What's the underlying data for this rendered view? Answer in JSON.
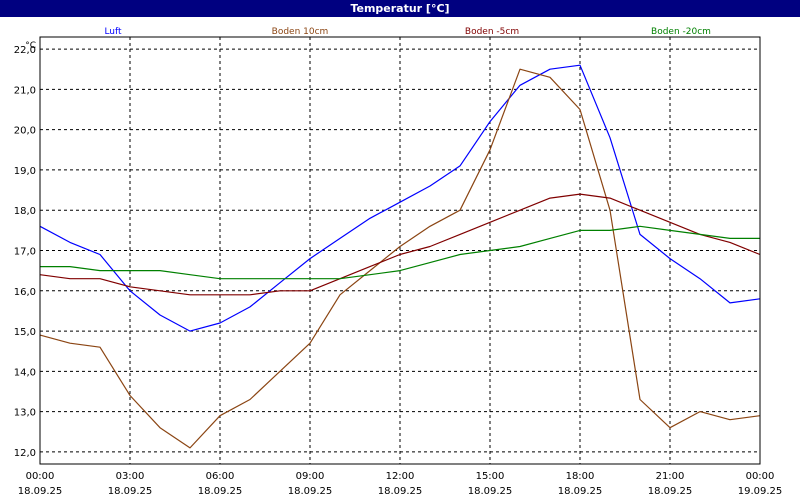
{
  "window": {
    "title": "Temperatur [°C]"
  },
  "colors": {
    "title_bar": "#000080",
    "grid": "#000000",
    "Luft": "#0000ff",
    "Boden 10cm": "#8b4513",
    "Boden -5cm": "#800000",
    "Boden -20cm": "#008000"
  },
  "chart_data": {
    "type": "line",
    "title": "Temperatur [°C]",
    "unit": "°C",
    "ylim": [
      11.7,
      22.3
    ],
    "y_ticks": [
      12.0,
      13.0,
      14.0,
      15.0,
      16.0,
      17.0,
      18.0,
      19.0,
      20.0,
      21.0,
      22.0
    ],
    "y_tick_labels": [
      "12,0",
      "13,0",
      "14,0",
      "15,0",
      "16,0",
      "17,0",
      "18,0",
      "19,0",
      "20,0",
      "21,0",
      "22,0"
    ],
    "x_ticks": [
      {
        "time": "00:00",
        "date": "18.09.25"
      },
      {
        "time": "03:00",
        "date": "18.09.25"
      },
      {
        "time": "06:00",
        "date": "18.09.25"
      },
      {
        "time": "09:00",
        "date": "18.09.25"
      },
      {
        "time": "12:00",
        "date": "18.09.25"
      },
      {
        "time": "15:00",
        "date": "18.09.25"
      },
      {
        "time": "18:00",
        "date": "18.09.25"
      },
      {
        "time": "21:00",
        "date": "18.09.25"
      },
      {
        "time": "00:00",
        "date": "19.09.25"
      }
    ],
    "x": [
      "18.09.25 00:00",
      "18.09.25 01:00",
      "18.09.25 02:00",
      "18.09.25 03:00",
      "18.09.25 04:00",
      "18.09.25 05:00",
      "18.09.25 06:00",
      "18.09.25 07:00",
      "18.09.25 08:00",
      "18.09.25 09:00",
      "18.09.25 10:00",
      "18.09.25 11:00",
      "18.09.25 12:00",
      "18.09.25 13:00",
      "18.09.25 14:00",
      "18.09.25 15:00",
      "18.09.25 16:00",
      "18.09.25 17:00",
      "18.09.25 18:00",
      "18.09.25 19:00",
      "18.09.25 20:00",
      "18.09.25 21:00",
      "18.09.25 22:00",
      "18.09.25 23:00",
      "19.09.25 00:00"
    ],
    "grid": true,
    "legend_position": "top",
    "series": [
      {
        "name": "Luft",
        "values": [
          17.6,
          17.2,
          16.9,
          16.0,
          15.4,
          15.0,
          15.2,
          15.6,
          16.2,
          16.8,
          17.3,
          17.8,
          18.2,
          18.6,
          19.1,
          20.2,
          21.1,
          21.5,
          21.6,
          19.8,
          17.4,
          16.8,
          16.3,
          15.7,
          15.8
        ]
      },
      {
        "name": "Boden 10cm",
        "values": [
          14.9,
          14.7,
          14.6,
          13.4,
          12.6,
          12.1,
          12.9,
          13.3,
          14.0,
          14.7,
          15.9,
          16.5,
          17.1,
          17.6,
          18.0,
          19.5,
          21.5,
          21.3,
          20.5,
          18.0,
          13.3,
          12.6,
          13.0,
          12.8,
          12.9
        ]
      },
      {
        "name": "Boden -5cm",
        "values": [
          16.4,
          16.3,
          16.3,
          16.1,
          16.0,
          15.9,
          15.9,
          15.9,
          16.0,
          16.0,
          16.3,
          16.6,
          16.9,
          17.1,
          17.4,
          17.7,
          18.0,
          18.3,
          18.4,
          18.3,
          18.0,
          17.7,
          17.4,
          17.2,
          16.9
        ]
      },
      {
        "name": "Boden -20cm",
        "values": [
          16.6,
          16.6,
          16.5,
          16.5,
          16.5,
          16.4,
          16.3,
          16.3,
          16.3,
          16.3,
          16.3,
          16.4,
          16.5,
          16.7,
          16.9,
          17.0,
          17.1,
          17.3,
          17.5,
          17.5,
          17.6,
          17.5,
          17.4,
          17.3,
          17.3
        ]
      }
    ]
  }
}
